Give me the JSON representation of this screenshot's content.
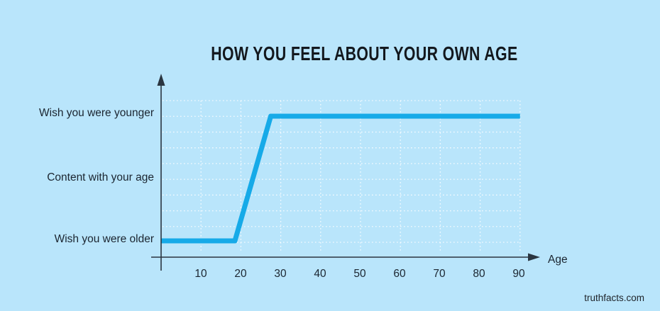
{
  "page": {
    "background": "#b9e5fb"
  },
  "header": {
    "title": "HOW YOU FEEL ABOUT YOUR OWN AGE"
  },
  "footer": {
    "site": "truthfacts.com"
  },
  "chart_data": {
    "type": "line",
    "title": "HOW YOU FEEL ABOUT YOUR OWN AGE",
    "xlabel": "Age",
    "xlim": [
      0,
      93
    ],
    "x_ticks": [
      "10",
      "20",
      "30",
      "40",
      "50",
      "60",
      "70",
      "80",
      "90"
    ],
    "y_labels_top_to_bottom": [
      "Wish you were younger",
      "Content with your age",
      "Wish you were older"
    ],
    "y_level_map": {
      "0": "Wish you were older",
      "1": "Content with your age",
      "2": "Wish you were younger"
    },
    "grid": true,
    "legend_position": "none",
    "line_color": "#16aae8",
    "axis_color": "#2a3540",
    "grid_color": "rgba(255,255,255,0.85)",
    "series": [
      {
        "name": "feeling-about-own-age",
        "color": "#16aae8",
        "points": [
          {
            "age": 0,
            "level": 0
          },
          {
            "age": 18.5,
            "level": 0
          },
          {
            "age": 27.5,
            "level": 2
          },
          {
            "age": 90,
            "level": 2
          }
        ]
      }
    ]
  }
}
